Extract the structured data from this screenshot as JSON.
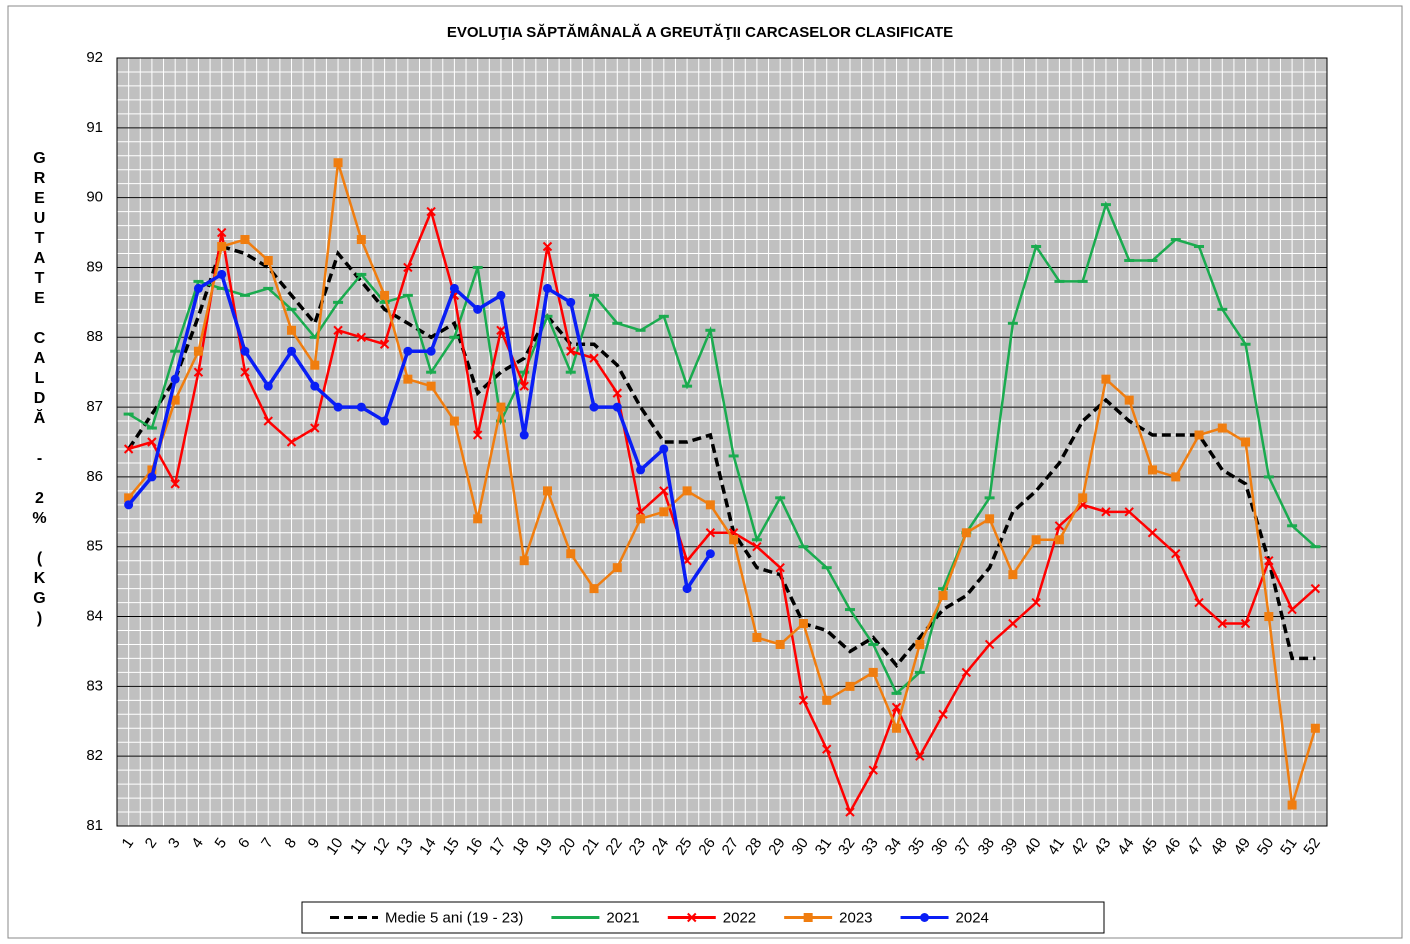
{
  "chart_data": {
    "type": "line",
    "title": "EVOLUŢIA SĂPTĂMÂNALĂ  A GREUTĂŢII CARCASELOR CLASIFICATE",
    "y_label": "GREUTATE CALDĂ - 2% (KG)",
    "categories": [
      "1",
      "2",
      "3",
      "4",
      "5",
      "6",
      "7",
      "8",
      "9",
      "10",
      "11",
      "12",
      "13",
      "14",
      "15",
      "16",
      "17",
      "18",
      "19",
      "20",
      "21",
      "22",
      "23",
      "24",
      "25",
      "26",
      "27",
      "28",
      "29",
      "30",
      "31",
      "32",
      "33",
      "34",
      "35",
      "36",
      "37",
      "38",
      "39",
      "40",
      "41",
      "42",
      "43",
      "44",
      "45",
      "46",
      "47",
      "48",
      "49",
      "50",
      "51",
      "52"
    ],
    "ylim": [
      81,
      92
    ],
    "yticks": [
      81,
      82,
      83,
      84,
      85,
      86,
      87,
      88,
      89,
      90,
      91,
      92
    ],
    "grid": true,
    "series": [
      {
        "name": "Medie 5 ani (19 - 23)",
        "color": "#000000",
        "dashed": true,
        "marker": "none",
        "values": [
          86.4,
          86.9,
          87.4,
          88.3,
          89.3,
          89.2,
          89.0,
          88.6,
          88.2,
          89.2,
          88.8,
          88.4,
          88.2,
          88.0,
          88.2,
          87.2,
          87.5,
          87.7,
          88.3,
          87.9,
          87.9,
          87.6,
          87.0,
          86.5,
          86.5,
          86.6,
          85.2,
          84.7,
          84.6,
          83.9,
          83.8,
          83.5,
          83.7,
          83.3,
          83.7,
          84.1,
          84.3,
          84.7,
          85.5,
          85.8,
          86.2,
          86.8,
          87.1,
          86.8,
          86.6,
          86.6,
          86.6,
          86.1,
          85.9,
          84.8,
          83.4,
          83.4
        ]
      },
      {
        "name": "2021",
        "color": "#1aab4f",
        "marker": "dash",
        "values": [
          86.9,
          86.7,
          87.8,
          88.8,
          88.7,
          88.6,
          88.7,
          88.4,
          88.0,
          88.5,
          88.9,
          88.5,
          88.6,
          87.5,
          88.0,
          89.0,
          86.8,
          87.5,
          88.3,
          87.5,
          88.6,
          88.2,
          88.1,
          88.3,
          87.3,
          88.1,
          86.3,
          85.1,
          85.7,
          85.0,
          84.7,
          84.1,
          83.6,
          82.9,
          83.2,
          84.4,
          85.2,
          85.7,
          88.2,
          89.3,
          88.8,
          88.8,
          89.9,
          89.1,
          89.1,
          89.4,
          89.3,
          88.4,
          87.9,
          86.0,
          85.3,
          85.0
        ]
      },
      {
        "name": "2022",
        "color": "#ff0000",
        "marker": "cross",
        "values": [
          86.4,
          86.5,
          85.9,
          87.5,
          89.5,
          87.5,
          86.8,
          86.5,
          86.7,
          88.1,
          88.0,
          87.9,
          89.0,
          89.8,
          88.6,
          86.6,
          88.1,
          87.3,
          89.3,
          87.8,
          87.7,
          87.2,
          85.5,
          85.8,
          84.8,
          85.2,
          85.2,
          85.0,
          84.7,
          82.8,
          82.1,
          81.2,
          81.8,
          82.7,
          82.0,
          82.6,
          83.2,
          83.6,
          83.9,
          84.2,
          85.3,
          85.6,
          85.5,
          85.5,
          85.2,
          84.9,
          84.2,
          83.9,
          83.9,
          84.8,
          84.1,
          84.4
        ]
      },
      {
        "name": "2023",
        "color": "#f07d0f",
        "marker": "square",
        "values": [
          85.7,
          86.1,
          87.1,
          87.8,
          89.3,
          89.4,
          89.1,
          88.1,
          87.6,
          90.5,
          89.4,
          88.6,
          87.4,
          87.3,
          86.8,
          85.4,
          87.0,
          84.8,
          85.8,
          84.9,
          84.4,
          84.7,
          85.4,
          85.5,
          85.8,
          85.6,
          85.1,
          83.7,
          83.6,
          83.9,
          82.8,
          83.0,
          83.2,
          82.4,
          83.6,
          84.3,
          85.2,
          85.4,
          84.6,
          85.1,
          85.1,
          85.7,
          87.4,
          87.1,
          86.1,
          86.0,
          86.6,
          86.7,
          86.5,
          84.0,
          81.3,
          82.4
        ]
      },
      {
        "name": "2024",
        "color": "#0a1ef5",
        "marker": "circle",
        "values": [
          85.6,
          86.0,
          87.4,
          88.7,
          88.9,
          87.8,
          87.3,
          87.8,
          87.3,
          87.0,
          87.0,
          86.8,
          87.8,
          87.8,
          88.7,
          88.4,
          88.6,
          86.6,
          88.7,
          88.5,
          87.0,
          87.0,
          86.1,
          86.4,
          84.4,
          84.9,
          null,
          null,
          null,
          null,
          null,
          null,
          null,
          null,
          null,
          null,
          null,
          null,
          null,
          null,
          null,
          null,
          null,
          null,
          null,
          null,
          null,
          null,
          null,
          null,
          null,
          null
        ]
      }
    ]
  }
}
